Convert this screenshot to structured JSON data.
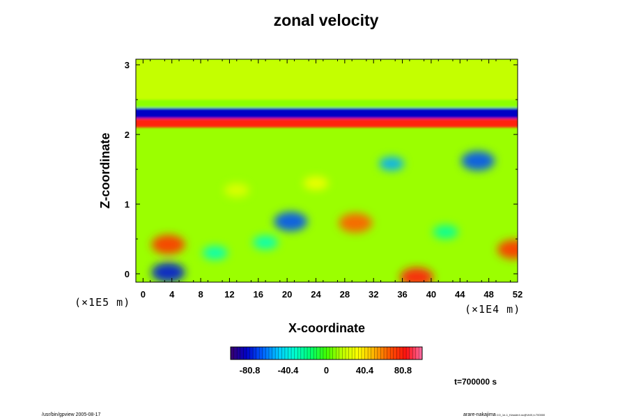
{
  "chart_data": {
    "type": "heatmap",
    "title": "zonal velocity",
    "xlabel": "X-coordinate",
    "ylabel": "Z-coordinate",
    "x_unit": "(×1E4 m)",
    "y_unit": "(×1E5 m)",
    "xlim": [
      -1,
      52
    ],
    "ylim": [
      -0.12,
      3.08
    ],
    "x_ticks": [
      0,
      4,
      8,
      12,
      16,
      20,
      24,
      28,
      32,
      36,
      40,
      44,
      48,
      52
    ],
    "y_ticks": [
      0,
      1,
      2,
      3
    ],
    "colorbar": {
      "min": -101,
      "max": 101,
      "ticks": [
        -80.8,
        -40.4,
        0,
        40.4,
        80.8
      ],
      "colors": [
        "#3a006e",
        "#0000c8",
        "#0060ff",
        "#00c8ff",
        "#00ffd0",
        "#00ff70",
        "#40ff00",
        "#c0ff00",
        "#ffff00",
        "#ffb000",
        "#ff5000",
        "#ff1010",
        "#ff70a8"
      ]
    },
    "bands": [
      {
        "z_from": 2.23,
        "z_to": 2.38,
        "value": -85
      },
      {
        "z_from": 2.1,
        "z_to": 2.23,
        "value": 80
      },
      {
        "z_from": 2.38,
        "z_to": 2.5,
        "value": 10
      },
      {
        "z_from": 2.5,
        "z_to": 3.08,
        "value": 18
      }
    ],
    "features": [
      {
        "x": 3.5,
        "z": 0.02,
        "value": -80
      },
      {
        "x": 20.5,
        "z": 0.75,
        "value": -70
      },
      {
        "x": 34.5,
        "z": 1.58,
        "value": -55
      },
      {
        "x": 46.5,
        "z": 1.62,
        "value": -70
      },
      {
        "x": 3.5,
        "z": 0.42,
        "value": 75
      },
      {
        "x": 29.5,
        "z": 0.73,
        "value": 65
      },
      {
        "x": 38,
        "z": -0.05,
        "value": 80
      },
      {
        "x": 51.5,
        "z": 0.35,
        "value": 75
      },
      {
        "x": 10,
        "z": 0.3,
        "value": -30
      },
      {
        "x": 42,
        "z": 0.6,
        "value": -25
      },
      {
        "x": 17,
        "z": 0.45,
        "value": -30
      },
      {
        "x": 24,
        "z": 1.3,
        "value": 30
      },
      {
        "x": 13,
        "z": 1.2,
        "value": 25
      }
    ],
    "annotation": "t=700000 s"
  },
  "footer": {
    "left": "/usr/bin/gpview 2005-08-17",
    "right": "arare-nakajima",
    "right_small": "CO_1e-1_Kessler4.nc@VelX,t=700000"
  }
}
